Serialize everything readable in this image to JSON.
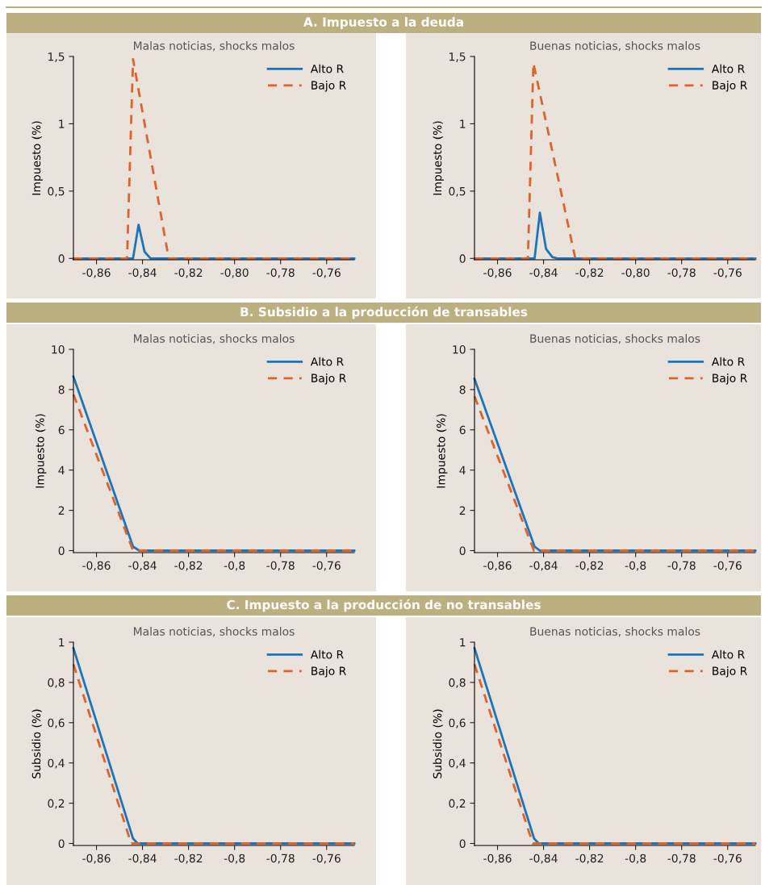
{
  "chart_data": [
    {
      "type": "line",
      "title": "A. Impuesto a la deuda",
      "subtitle": "Malas noticias, shocks malos",
      "ylabel": "Impuesto (%)",
      "xlim": [
        -0.87,
        -0.748
      ],
      "ylim": [
        -0.01,
        1.5
      ],
      "xticks": [
        {
          "value": -0.86,
          "label": "-0,86"
        },
        {
          "value": -0.84,
          "label": "-0,84"
        },
        {
          "value": -0.82,
          "label": "-0,82"
        },
        {
          "value": -0.8,
          "label": "-0,80"
        },
        {
          "value": -0.78,
          "label": "-0,78"
        },
        {
          "value": -0.76,
          "label": "-0,76"
        }
      ],
      "yticks": [
        0,
        {
          "value": 0.5,
          "label": "0,5"
        },
        1,
        {
          "value": 1.5,
          "label": "1,5"
        }
      ],
      "legend": "top right",
      "series": [
        {
          "name": "Alto R",
          "color": "#1a75bc",
          "line_style": "solid",
          "x": [
            -0.87,
            -0.8441,
            -0.8417,
            -0.8391,
            -0.8365,
            -0.748
          ],
          "values": [
            0,
            0,
            0.25,
            0.05,
            0,
            0
          ]
        },
        {
          "name": "Bajo R",
          "color": "#e0622a",
          "line_style": "dashed",
          "x": [
            -0.87,
            -0.8467,
            -0.8441,
            -0.8286,
            -0.748
          ],
          "values": [
            0,
            0,
            1.48,
            0,
            0
          ]
        }
      ]
    },
    {
      "type": "line",
      "subtitle": "Buenas noticias, shocks malos",
      "ylabel": "Impuesto (%)",
      "xlim": [
        -0.87,
        -0.748
      ],
      "ylim": [
        -0.01,
        1.5
      ],
      "xticks": [
        {
          "value": -0.86,
          "label": "-0,86"
        },
        {
          "value": -0.84,
          "label": "-0,84"
        },
        {
          "value": -0.82,
          "label": "-0,82"
        },
        {
          "value": -0.8,
          "label": "-0,80"
        },
        {
          "value": -0.78,
          "label": "-0,78"
        },
        {
          "value": -0.76,
          "label": "-0,76"
        }
      ],
      "yticks": [
        0,
        {
          "value": 0.5,
          "label": "0,5"
        },
        1,
        {
          "value": 1.5,
          "label": "1,5"
        }
      ],
      "legend": "top right",
      "series": [
        {
          "name": "Alto R",
          "color": "#1a75bc",
          "line_style": "solid",
          "x": [
            -0.87,
            -0.8439,
            -0.8416,
            -0.8389,
            -0.8362,
            -0.834,
            -0.748
          ],
          "values": [
            0,
            0,
            0.34,
            0.07,
            0.01,
            0,
            0
          ]
        },
        {
          "name": "Bajo R",
          "color": "#e0622a",
          "line_style": "dashed",
          "x": [
            -0.87,
            -0.8468,
            -0.8444,
            -0.8262,
            -0.748
          ],
          "values": [
            0,
            0,
            1.45,
            0,
            0
          ]
        }
      ]
    },
    {
      "type": "line",
      "title": "B. Subsidio a la producción de transables",
      "subtitle": "Malas noticias, shocks malos",
      "ylabel": "Impuesto (%)",
      "xlim": [
        -0.87,
        -0.748
      ],
      "ylim": [
        -0.1,
        10
      ],
      "xticks": [
        {
          "value": -0.86,
          "label": "-0,86"
        },
        {
          "value": -0.84,
          "label": "-0,84"
        },
        {
          "value": -0.82,
          "label": "-0,82"
        },
        {
          "value": -0.8,
          "label": "-0,8"
        },
        {
          "value": -0.78,
          "label": "-0,78"
        },
        {
          "value": -0.76,
          "label": "-0,76"
        }
      ],
      "yticks": [
        0,
        2,
        4,
        6,
        8,
        10
      ],
      "legend": "top right",
      "series": [
        {
          "name": "Alto R",
          "color": "#1a75bc",
          "line_style": "solid",
          "x": [
            -0.87,
            -0.8441,
            -0.8414,
            -0.748
          ],
          "values": [
            8.64,
            0.2,
            0,
            0
          ]
        },
        {
          "name": "Bajo R",
          "color": "#e0622a",
          "line_style": "dashed",
          "x": [
            -0.87,
            -0.8441,
            -0.748
          ],
          "values": [
            7.76,
            0,
            0
          ]
        }
      ]
    },
    {
      "type": "line",
      "subtitle": "Buenas noticias, shocks malos",
      "ylabel": "Impuesto (%)",
      "xlim": [
        -0.87,
        -0.748
      ],
      "ylim": [
        -0.1,
        10
      ],
      "xticks": [
        {
          "value": -0.86,
          "label": "-0,86"
        },
        {
          "value": -0.84,
          "label": "-0,84"
        },
        {
          "value": -0.82,
          "label": "-0,82"
        },
        {
          "value": -0.8,
          "label": "-0,8"
        },
        {
          "value": -0.78,
          "label": "-0,78"
        },
        {
          "value": -0.76,
          "label": "-0,76"
        }
      ],
      "yticks": [
        0,
        2,
        4,
        6,
        8,
        10
      ],
      "legend": "top right",
      "series": [
        {
          "name": "Alto R",
          "color": "#1a75bc",
          "line_style": "solid",
          "x": [
            -0.87,
            -0.8439,
            -0.8415,
            -0.748
          ],
          "values": [
            8.53,
            0.2,
            0,
            0
          ]
        },
        {
          "name": "Bajo R",
          "color": "#e0622a",
          "line_style": "dashed",
          "x": [
            -0.87,
            -0.8442,
            -0.748
          ],
          "values": [
            7.67,
            0,
            0
          ]
        }
      ]
    },
    {
      "type": "line",
      "title": "C. Impuesto a la producción de no transables",
      "subtitle": "Malas noticias, shocks malos",
      "ylabel": "Subsidio (%)",
      "xlim": [
        -0.87,
        -0.748
      ],
      "ylim": [
        -0.01,
        1
      ],
      "xticks": [
        {
          "value": -0.86,
          "label": "-0,86"
        },
        {
          "value": -0.84,
          "label": "-0,84"
        },
        {
          "value": -0.82,
          "label": "-0,82"
        },
        {
          "value": -0.8,
          "label": "-0,8"
        },
        {
          "value": -0.78,
          "label": "-0,78"
        },
        {
          "value": -0.76,
          "label": "-0,76"
        }
      ],
      "yticks": [
        0,
        {
          "value": 0.2,
          "label": "0,2"
        },
        {
          "value": 0.4,
          "label": "0,4"
        },
        {
          "value": 0.6,
          "label": "0,6"
        },
        {
          "value": 0.8,
          "label": "0,8"
        },
        1
      ],
      "legend": "top right",
      "series": [
        {
          "name": "Alto R",
          "color": "#1a75bc",
          "line_style": "solid",
          "x": [
            -0.87,
            -0.8441,
            -0.8421,
            -0.748
          ],
          "values": [
            0.97,
            0.024,
            0,
            0
          ]
        },
        {
          "name": "Bajo R",
          "color": "#e0622a",
          "line_style": "dashed",
          "x": [
            -0.87,
            -0.8449,
            -0.748
          ],
          "values": [
            0.89,
            0,
            0
          ]
        }
      ]
    },
    {
      "type": "line",
      "subtitle": "Buenas noticias, shocks malos",
      "ylabel": "Subsidio (%)",
      "xlim": [
        -0.87,
        -0.748
      ],
      "ylim": [
        -0.01,
        1
      ],
      "xticks": [
        {
          "value": -0.86,
          "label": "-0,86"
        },
        {
          "value": -0.84,
          "label": "-0,84"
        },
        {
          "value": -0.82,
          "label": "-0,82"
        },
        {
          "value": -0.8,
          "label": "-0,8"
        },
        {
          "value": -0.78,
          "label": "-0,78"
        },
        {
          "value": -0.76,
          "label": "-0,76"
        }
      ],
      "yticks": [
        0,
        {
          "value": 0.2,
          "label": "0,2"
        },
        {
          "value": 0.4,
          "label": "0,4"
        },
        {
          "value": 0.6,
          "label": "0,6"
        },
        {
          "value": 0.8,
          "label": "0,8"
        },
        1
      ],
      "legend": "top right",
      "series": [
        {
          "name": "Alto R",
          "color": "#1a75bc",
          "line_style": "solid",
          "x": [
            -0.87,
            -0.8441,
            -0.8421,
            -0.748
          ],
          "values": [
            0.97,
            0.024,
            0,
            0
          ]
        },
        {
          "name": "Bajo R",
          "color": "#e0622a",
          "line_style": "dashed",
          "x": [
            -0.87,
            -0.8447,
            -0.748
          ],
          "values": [
            0.89,
            0,
            0
          ]
        }
      ]
    }
  ]
}
